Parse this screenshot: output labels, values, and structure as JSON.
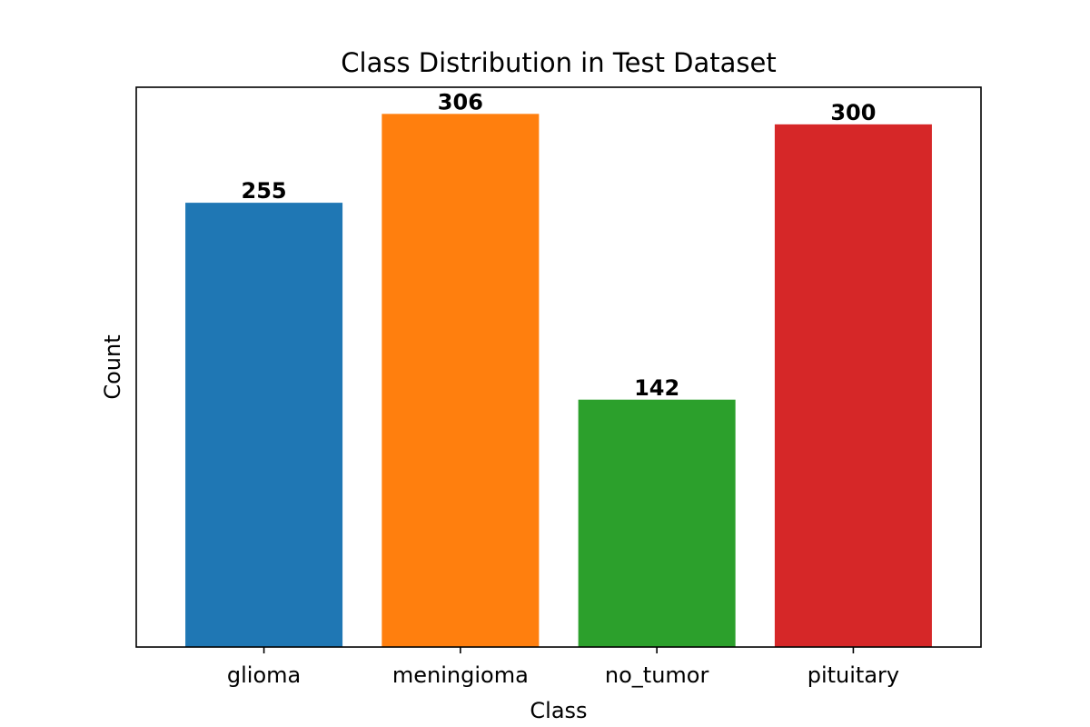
{
  "chart_data": {
    "type": "bar",
    "title": "Class Distribution in Test Dataset",
    "xlabel": "Class",
    "ylabel": "Count",
    "categories": [
      "glioma",
      "meningioma",
      "no_tumor",
      "pituitary"
    ],
    "values": [
      255,
      306,
      142,
      300
    ],
    "colors": [
      "#1f77b4",
      "#ff7f0e",
      "#2ca02c",
      "#d62728"
    ],
    "ylim": [
      0,
      321.3
    ],
    "y_ticks_visible": false,
    "grid": false,
    "legend": "none",
    "data_labels": [
      "255",
      "306",
      "142",
      "300"
    ]
  }
}
